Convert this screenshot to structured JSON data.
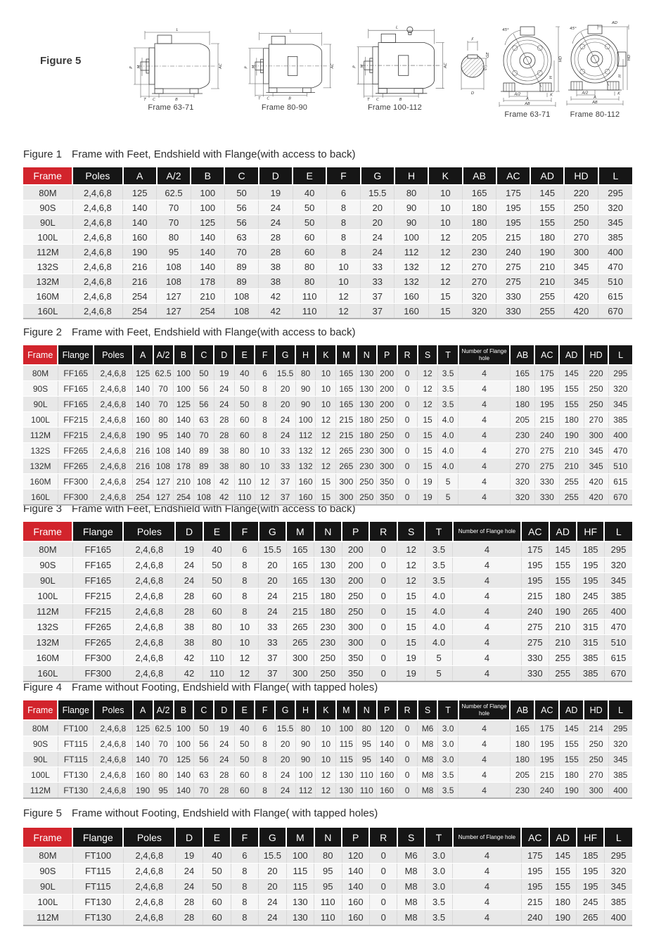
{
  "page": {
    "figure_label": "Figure 5"
  },
  "colors": {
    "accent_red": "#d2242c",
    "header_black": "#161616",
    "row_gray": "#e8e8e8"
  },
  "drawings": {
    "captions": [
      "Frame 63-71",
      "Frame 80-90",
      "Frame 100-112",
      "Frame 63-71",
      "Frame 80-112"
    ],
    "dims": {
      "L": "L",
      "P": "P",
      "M": "M",
      "AC": "AC",
      "T": "T",
      "C": "C",
      "B": "B",
      "F": "F",
      "G": "G",
      "D": "D",
      "GE": "GE",
      "deg45": "45°",
      "HD": "HD",
      "H": "H",
      "A2": "A/2",
      "A": "A",
      "AB": "AB",
      "K": "K",
      "AD": "AD"
    }
  },
  "tables": [
    {
      "fig_label": "Figure 1",
      "title": "Frame with Feet, Endshield with Flange(with access to back)",
      "headers": [
        "Frame",
        "Poles",
        "A",
        "A/2",
        "B",
        "C",
        "D",
        "E",
        "F",
        "G",
        "H",
        "K",
        "AB",
        "AC",
        "AD",
        "HD",
        "L"
      ],
      "rows": [
        [
          "80M",
          "2,4,6,8",
          "125",
          "62.5",
          "100",
          "50",
          "19",
          "40",
          "6",
          "15.5",
          "80",
          "10",
          "165",
          "175",
          "145",
          "220",
          "295"
        ],
        [
          "90S",
          "2,4,6,8",
          "140",
          "70",
          "100",
          "56",
          "24",
          "50",
          "8",
          "20",
          "90",
          "10",
          "180",
          "195",
          "155",
          "250",
          "320"
        ],
        [
          "90L",
          "2,4,6,8",
          "140",
          "70",
          "125",
          "56",
          "24",
          "50",
          "8",
          "20",
          "90",
          "10",
          "180",
          "195",
          "155",
          "250",
          "345"
        ],
        [
          "100L",
          "2,4,6,8",
          "160",
          "80",
          "140",
          "63",
          "28",
          "60",
          "8",
          "24",
          "100",
          "12",
          "205",
          "215",
          "180",
          "270",
          "385"
        ],
        [
          "112M",
          "2,4,6,8",
          "190",
          "95",
          "140",
          "70",
          "28",
          "60",
          "8",
          "24",
          "112",
          "12",
          "230",
          "240",
          "190",
          "300",
          "400"
        ],
        [
          "132S",
          "2,4,6,8",
          "216",
          "108",
          "140",
          "89",
          "38",
          "80",
          "10",
          "33",
          "132",
          "12",
          "270",
          "275",
          "210",
          "345",
          "470"
        ],
        [
          "132M",
          "2,4,6,8",
          "216",
          "108",
          "178",
          "89",
          "38",
          "80",
          "10",
          "33",
          "132",
          "12",
          "270",
          "275",
          "210",
          "345",
          "510"
        ],
        [
          "160M",
          "2,4,6,8",
          "254",
          "127",
          "210",
          "108",
          "42",
          "110",
          "12",
          "37",
          "160",
          "15",
          "320",
          "330",
          "255",
          "420",
          "615"
        ],
        [
          "160L",
          "2,4,6,8",
          "254",
          "127",
          "254",
          "108",
          "42",
          "110",
          "12",
          "37",
          "160",
          "15",
          "320",
          "330",
          "255",
          "420",
          "670"
        ]
      ]
    },
    {
      "fig_label": "Figure 2",
      "title": "Frame with Feet, Endshield with Flange(with access to back)",
      "headers": [
        "Frame",
        "Flange",
        "Poles",
        "A",
        "A/2",
        "B",
        "C",
        "D",
        "E",
        "F",
        "G",
        "H",
        "K",
        "M",
        "N",
        "P",
        "R",
        "S",
        "T",
        "Number of Flange hole",
        "AB",
        "AC",
        "AD",
        "HD",
        "L"
      ],
      "rows": [
        [
          "80M",
          "FF165",
          "2,4,6,8",
          "125",
          "62.5",
          "100",
          "50",
          "19",
          "40",
          "6",
          "15.5",
          "80",
          "10",
          "165",
          "130",
          "200",
          "0",
          "12",
          "3.5",
          "4",
          "165",
          "175",
          "145",
          "220",
          "295"
        ],
        [
          "90S",
          "FF165",
          "2,4,6,8",
          "140",
          "70",
          "100",
          "56",
          "24",
          "50",
          "8",
          "20",
          "90",
          "10",
          "165",
          "130",
          "200",
          "0",
          "12",
          "3.5",
          "4",
          "180",
          "195",
          "155",
          "250",
          "320"
        ],
        [
          "90L",
          "FF165",
          "2,4,6,8",
          "140",
          "70",
          "125",
          "56",
          "24",
          "50",
          "8",
          "20",
          "90",
          "10",
          "165",
          "130",
          "200",
          "0",
          "12",
          "3.5",
          "4",
          "180",
          "195",
          "155",
          "250",
          "345"
        ],
        [
          "100L",
          "FF215",
          "2,4,6,8",
          "160",
          "80",
          "140",
          "63",
          "28",
          "60",
          "8",
          "24",
          "100",
          "12",
          "215",
          "180",
          "250",
          "0",
          "15",
          "4.0",
          "4",
          "205",
          "215",
          "180",
          "270",
          "385"
        ],
        [
          "112M",
          "FF215",
          "2,4,6,8",
          "190",
          "95",
          "140",
          "70",
          "28",
          "60",
          "8",
          "24",
          "112",
          "12",
          "215",
          "180",
          "250",
          "0",
          "15",
          "4.0",
          "4",
          "230",
          "240",
          "190",
          "300",
          "400"
        ],
        [
          "132S",
          "FF265",
          "2,4,6,8",
          "216",
          "108",
          "140",
          "89",
          "38",
          "80",
          "10",
          "33",
          "132",
          "12",
          "265",
          "230",
          "300",
          "0",
          "15",
          "4.0",
          "4",
          "270",
          "275",
          "210",
          "345",
          "470"
        ],
        [
          "132M",
          "FF265",
          "2,4,6,8",
          "216",
          "108",
          "178",
          "89",
          "38",
          "80",
          "10",
          "33",
          "132",
          "12",
          "265",
          "230",
          "300",
          "0",
          "15",
          "4.0",
          "4",
          "270",
          "275",
          "210",
          "345",
          "510"
        ],
        [
          "160M",
          "FF300",
          "2,4,6,8",
          "254",
          "127",
          "210",
          "108",
          "42",
          "110",
          "12",
          "37",
          "160",
          "15",
          "300",
          "250",
          "350",
          "0",
          "19",
          "5",
          "4",
          "320",
          "330",
          "255",
          "420",
          "615"
        ],
        [
          "160L",
          "FF300",
          "2,4,6,8",
          "254",
          "127",
          "254",
          "108",
          "42",
          "110",
          "12",
          "37",
          "160",
          "15",
          "300",
          "250",
          "350",
          "0",
          "19",
          "5",
          "4",
          "320",
          "330",
          "255",
          "420",
          "670"
        ]
      ]
    },
    {
      "fig_label": "Figure 3",
      "title": "Frame with Feet, Endshield with Flange(with access to back)",
      "headers": [
        "Frame",
        "Flange",
        "Poles",
        "D",
        "E",
        "F",
        "G",
        "M",
        "N",
        "P",
        "R",
        "S",
        "T",
        "Number of Flange hole",
        "AC",
        "AD",
        "HF",
        "L"
      ],
      "rows": [
        [
          "80M",
          "FF165",
          "2,4,6,8",
          "19",
          "40",
          "6",
          "15.5",
          "165",
          "130",
          "200",
          "0",
          "12",
          "3.5",
          "4",
          "175",
          "145",
          "185",
          "295"
        ],
        [
          "90S",
          "FF165",
          "2,4,6,8",
          "24",
          "50",
          "8",
          "20",
          "165",
          "130",
          "200",
          "0",
          "12",
          "3.5",
          "4",
          "195",
          "155",
          "195",
          "320"
        ],
        [
          "90L",
          "FF165",
          "2,4,6,8",
          "24",
          "50",
          "8",
          "20",
          "165",
          "130",
          "200",
          "0",
          "12",
          "3.5",
          "4",
          "195",
          "155",
          "195",
          "345"
        ],
        [
          "100L",
          "FF215",
          "2,4,6,8",
          "28",
          "60",
          "8",
          "24",
          "215",
          "180",
          "250",
          "0",
          "15",
          "4.0",
          "4",
          "215",
          "180",
          "245",
          "385"
        ],
        [
          "112M",
          "FF215",
          "2,4,6,8",
          "28",
          "60",
          "8",
          "24",
          "215",
          "180",
          "250",
          "0",
          "15",
          "4.0",
          "4",
          "240",
          "190",
          "265",
          "400"
        ],
        [
          "132S",
          "FF265",
          "2,4,6,8",
          "38",
          "80",
          "10",
          "33",
          "265",
          "230",
          "300",
          "0",
          "15",
          "4.0",
          "4",
          "275",
          "210",
          "315",
          "470"
        ],
        [
          "132M",
          "FF265",
          "2,4,6,8",
          "38",
          "80",
          "10",
          "33",
          "265",
          "230",
          "300",
          "0",
          "15",
          "4.0",
          "4",
          "275",
          "210",
          "315",
          "510"
        ],
        [
          "160M",
          "FF300",
          "2,4,6,8",
          "42",
          "110",
          "12",
          "37",
          "300",
          "250",
          "350",
          "0",
          "19",
          "5",
          "4",
          "330",
          "255",
          "385",
          "615"
        ],
        [
          "160L",
          "FF300",
          "2,4,6,8",
          "42",
          "110",
          "12",
          "37",
          "300",
          "250",
          "350",
          "0",
          "19",
          "5",
          "4",
          "330",
          "255",
          "385",
          "670"
        ]
      ]
    },
    {
      "fig_label": "Figure 4",
      "title": "Frame without Footing, Endshield with Flange( with tapped holes)",
      "headers": [
        "Frame",
        "Flange",
        "Poles",
        "A",
        "A/2",
        "B",
        "C",
        "D",
        "E",
        "F",
        "G",
        "H",
        "K",
        "M",
        "N",
        "P",
        "R",
        "S",
        "T",
        "Number of Flange hole",
        "AB",
        "AC",
        "AD",
        "HD",
        "L"
      ],
      "rows": [
        [
          "80M",
          "FT100",
          "2,4,6,8",
          "125",
          "62.5",
          "100",
          "50",
          "19",
          "40",
          "6",
          "15.5",
          "80",
          "10",
          "100",
          "80",
          "120",
          "0",
          "M6",
          "3.0",
          "4",
          "165",
          "175",
          "145",
          "214",
          "295"
        ],
        [
          "90S",
          "FT115",
          "2,4,6,8",
          "140",
          "70",
          "100",
          "56",
          "24",
          "50",
          "8",
          "20",
          "90",
          "10",
          "115",
          "95",
          "140",
          "0",
          "M8",
          "3.0",
          "4",
          "180",
          "195",
          "155",
          "250",
          "320"
        ],
        [
          "90L",
          "FT115",
          "2,4,6,8",
          "140",
          "70",
          "125",
          "56",
          "24",
          "50",
          "8",
          "20",
          "90",
          "10",
          "115",
          "95",
          "140",
          "0",
          "M8",
          "3.0",
          "4",
          "180",
          "195",
          "155",
          "250",
          "345"
        ],
        [
          "100L",
          "FT130",
          "2,4,6,8",
          "160",
          "80",
          "140",
          "63",
          "28",
          "60",
          "8",
          "24",
          "100",
          "12",
          "130",
          "110",
          "160",
          "0",
          "M8",
          "3.5",
          "4",
          "205",
          "215",
          "180",
          "270",
          "385"
        ],
        [
          "112M",
          "FT130",
          "2,4,6,8",
          "190",
          "95",
          "140",
          "70",
          "28",
          "60",
          "8",
          "24",
          "112",
          "12",
          "130",
          "110",
          "160",
          "0",
          "M8",
          "3.5",
          "4",
          "230",
          "240",
          "190",
          "300",
          "400"
        ]
      ]
    },
    {
      "fig_label": "Figure 5",
      "title": "Frame without Footing, Endshield with Flange( with tapped holes)",
      "headers": [
        "Frame",
        "Flange",
        "Poles",
        "D",
        "E",
        "F",
        "G",
        "M",
        "N",
        "P",
        "R",
        "S",
        "T",
        "Number of Flange hole",
        "AC",
        "AD",
        "HF",
        "L"
      ],
      "rows": [
        [
          "80M",
          "FT100",
          "2,4,6,8",
          "19",
          "40",
          "6",
          "15.5",
          "100",
          "80",
          "120",
          "0",
          "M6",
          "3.0",
          "4",
          "175",
          "145",
          "185",
          "295"
        ],
        [
          "90S",
          "FT115",
          "2,4,6,8",
          "24",
          "50",
          "8",
          "20",
          "115",
          "95",
          "140",
          "0",
          "M8",
          "3.0",
          "4",
          "195",
          "155",
          "195",
          "320"
        ],
        [
          "90L",
          "FT115",
          "2,4,6,8",
          "24",
          "50",
          "8",
          "20",
          "115",
          "95",
          "140",
          "0",
          "M8",
          "3.0",
          "4",
          "195",
          "155",
          "195",
          "345"
        ],
        [
          "100L",
          "FT130",
          "2,4,6,8",
          "28",
          "60",
          "8",
          "24",
          "130",
          "110",
          "160",
          "0",
          "M8",
          "3.5",
          "4",
          "215",
          "180",
          "245",
          "385"
        ],
        [
          "112M",
          "FT130",
          "2,4,6,8",
          "28",
          "60",
          "8",
          "24",
          "130",
          "110",
          "160",
          "0",
          "M8",
          "3.5",
          "4",
          "240",
          "190",
          "265",
          "400"
        ]
      ]
    }
  ]
}
